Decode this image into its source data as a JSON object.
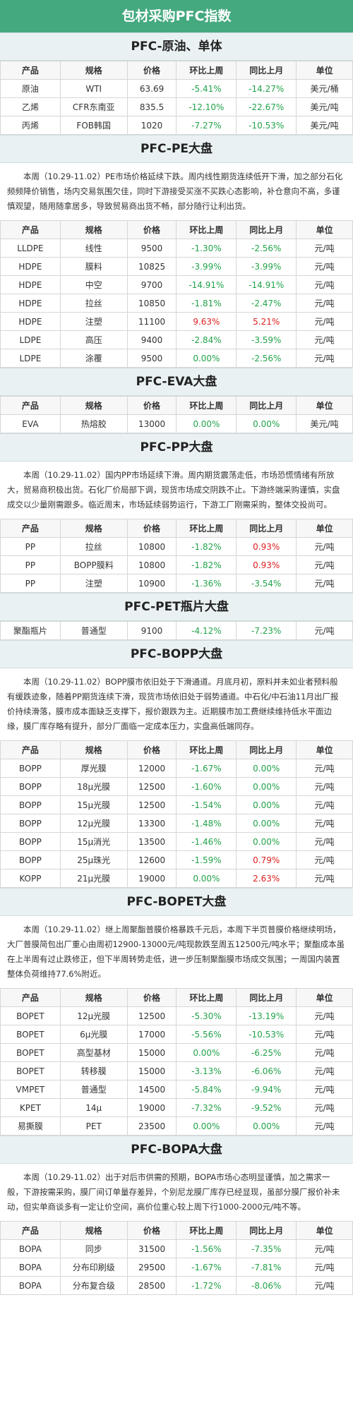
{
  "header": {
    "title": "包材采购PFC指数"
  },
  "sections": [
    {
      "title": "PFC-原油、单体",
      "columns": [
        "产品",
        "规格",
        "价格",
        "环比上周",
        "同比上月",
        "单位"
      ],
      "rows": [
        [
          "原油",
          "WTI",
          "63.69",
          "-5.41%",
          "-14.27%",
          "美元/桶"
        ],
        [
          "乙烯",
          "CFR东南亚",
          "835.5",
          "-12.10%",
          "-22.67%",
          "美元/吨"
        ],
        [
          "丙烯",
          "FOB韩国",
          "1020",
          "-7.27%",
          "-10.53%",
          "美元/吨"
        ]
      ]
    },
    {
      "title": "PFC-PE大盘",
      "paragraph": "本周（10.29-11.02）PE市场价格延续下跌。周内线性期货连续低开下滑，加之部分石化频频降价销售，场内交易氛围欠佳，同时下游接受买涨不买跌心态影响，补仓意向不高，多谨慎观望，随用随拿居多，导致贸易商出货不畅，部分随行让利出货。",
      "columns": [
        "产品",
        "规格",
        "价格",
        "环比上周",
        "同比上月",
        "单位"
      ],
      "rows": [
        [
          "LLDPE",
          "线性",
          "9500",
          "-1.30%",
          "-2.56%",
          "元/吨"
        ],
        [
          "HDPE",
          "膜料",
          "10825",
          "-3.99%",
          "-3.99%",
          "元/吨"
        ],
        [
          "HDPE",
          "中空",
          "9700",
          "-14.91%",
          "-14.91%",
          "元/吨"
        ],
        [
          "HDPE",
          "拉丝",
          "10850",
          "-1.81%",
          "-2.47%",
          "元/吨"
        ],
        [
          "HDPE",
          "注塑",
          "11100",
          "9.63%",
          "5.21%",
          "元/吨"
        ],
        [
          "LDPE",
          "高压",
          "9400",
          "-2.84%",
          "-3.59%",
          "元/吨"
        ],
        [
          "LDPE",
          "涂覆",
          "9500",
          "0.00%",
          "-2.56%",
          "元/吨"
        ]
      ]
    },
    {
      "title": "PFC-EVA大盘",
      "columns": [
        "产品",
        "规格",
        "价格",
        "环比上周",
        "同比上月",
        "单位"
      ],
      "rows": [
        [
          "EVA",
          "热熔胶",
          "13000",
          "0.00%",
          "0.00%",
          "美元/吨"
        ]
      ]
    },
    {
      "title": "PFC-PP大盘",
      "paragraph": "本周（10.29-11.02）国内PP市场延续下滑。周内期货震荡走低，市场恐慌情绪有所放大，贸易商积极出货。石化厂价局部下调，现货市场成交阴跌不止。下游终端采购谨慎，实盘成交以少量刚需跟多。临近周末，市场延续弱势运行，下游工厂刚需采购，整体交投尚可。",
      "columns": [
        "产品",
        "规格",
        "价格",
        "环比上周",
        "同比上月",
        "单位"
      ],
      "rows": [
        [
          "PP",
          "拉丝",
          "10800",
          "-1.82%",
          "0.93%",
          "元/吨"
        ],
        [
          "PP",
          "BOPP膜料",
          "10800",
          "-1.82%",
          "0.93%",
          "元/吨"
        ],
        [
          "PP",
          "注塑",
          "10900",
          "-1.36%",
          "-3.54%",
          "元/吨"
        ]
      ]
    },
    {
      "title": "PFC-PET瓶片大盘",
      "rows": [
        [
          "聚酯瓶片",
          "普通型",
          "9100",
          "-4.12%",
          "-7.23%",
          "元/吨"
        ]
      ]
    },
    {
      "title": "PFC-BOPP大盘",
      "paragraph": "本周（10.29-11.02）BOPP膜市依旧处于下滑通道。月底月初，原料并未如业者预料般有缓跌迹象，随着PP期货连续下滑，现货市场依旧处于弱势通道。中石化/中石油11月出厂报价持续滑落，膜市成本面缺乏支撑下，报价跟跌为主。近期膜市加工费继续维持低水平面边缘，膜厂库存略有提升，部分厂面临一定成本压力，实盘高低端同存。",
      "columns": [
        "产品",
        "规格",
        "价格",
        "环比上周",
        "同比上月",
        "单位"
      ],
      "rows": [
        [
          "BOPP",
          "厚光膜",
          "12000",
          "-1.67%",
          "0.00%",
          "元/吨"
        ],
        [
          "BOPP",
          "18μ光膜",
          "12500",
          "-1.60%",
          "0.00%",
          "元/吨"
        ],
        [
          "BOPP",
          "15μ光膜",
          "12500",
          "-1.54%",
          "0.00%",
          "元/吨"
        ],
        [
          "BOPP",
          "12μ光膜",
          "13300",
          "-1.48%",
          "0.00%",
          "元/吨"
        ],
        [
          "BOPP",
          "15μ消光",
          "13500",
          "-1.46%",
          "0.00%",
          "元/吨"
        ],
        [
          "BOPP",
          "25μ珠光",
          "12600",
          "-1.59%",
          "0.79%",
          "元/吨"
        ],
        [
          "KOPP",
          "21μ光膜",
          "19000",
          "0.00%",
          "2.63%",
          "元/吨"
        ]
      ]
    },
    {
      "title": "PFC-BOPET大盘",
      "paragraph": "本周（10.29-11.02）继上周聚酯普膜价格暴跌千元后，本周下半页普膜价格继续明场，大厂普膜简包出厂重心由周初12900-13000元/吨现款跌至周五12500元/吨水平；聚酯成本虽在上半周有过止跌修正，但下半周转势走低，进一步压制聚酯膜市场成交氛围；一周国内装置整体负荷维持77.6%附近。",
      "columns": [
        "产品",
        "规格",
        "价格",
        "环比上周",
        "同比上月",
        "单位"
      ],
      "rows": [
        [
          "BOPET",
          "12μ光膜",
          "12500",
          "-5.30%",
          "-13.19%",
          "元/吨"
        ],
        [
          "BOPET",
          "6μ光膜",
          "17000",
          "-5.56%",
          "-10.53%",
          "元/吨"
        ],
        [
          "BOPET",
          "高型基材",
          "15000",
          "0.00%",
          "-6.25%",
          "元/吨"
        ],
        [
          "BOPET",
          "转移膜",
          "15000",
          "-3.13%",
          "-6.06%",
          "元/吨"
        ],
        [
          "VMPET",
          "普通型",
          "14500",
          "-5.84%",
          "-9.94%",
          "元/吨"
        ],
        [
          "KPET",
          "14μ",
          "19000",
          "-7.32%",
          "-9.52%",
          "元/吨"
        ],
        [
          "易撕膜",
          "PET",
          "23500",
          "0.00%",
          "0.00%",
          "元/吨"
        ]
      ]
    },
    {
      "title": "PFC-BOPA大盘",
      "paragraph": "本周（10.29-11.02）出于对后市供需的预期，BOPA市场心态明显谨慎，加之需求一般，下游按需采购，膜厂间订单量存差异，个别尼龙膜厂库存已经显现，虽部分膜厂报价补未动，但实单商谈多有一定让价空间，高价位重心较上周下行1000-2000元/吨不等。",
      "columns": [
        "产品",
        "规格",
        "价格",
        "环比上周",
        "同比上月",
        "单位"
      ],
      "rows": [
        [
          "BOPA",
          "同步",
          "31500",
          "-1.56%",
          "-7.35%",
          "元/吨"
        ],
        [
          "BOPA",
          "分布印刷级",
          "29500",
          "-1.67%",
          "-7.81%",
          "元/吨"
        ],
        [
          "BOPA",
          "分布复合级",
          "28500",
          "-1.72%",
          "-8.06%",
          "元/吨"
        ]
      ]
    }
  ]
}
